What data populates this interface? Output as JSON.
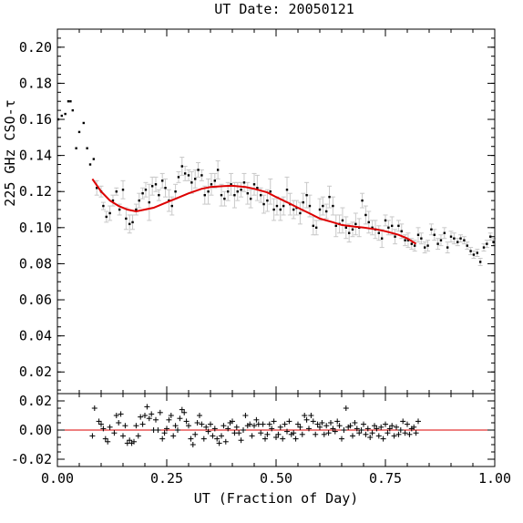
{
  "chart_data": {
    "type": "scatter",
    "title": "UT Date: 20050121",
    "xlabel": "UT (Fraction of Day)",
    "ylabel": "225 GHz CSO-τ",
    "colors": {
      "fit": "#dd0000",
      "data": "#000000",
      "errorbar": "#c8c8c8",
      "axes": "#000000"
    },
    "main_panel": {
      "xlim": [
        0,
        1
      ],
      "ylim": [
        0.008,
        0.21
      ],
      "xticks": [
        "0.00",
        "0.25",
        "0.50",
        "0.75",
        "1.00"
      ],
      "yticks": [
        "0.02",
        "0.04",
        "0.06",
        "0.08",
        "0.10",
        "0.12",
        "0.14",
        "0.16",
        "0.18",
        "0.20"
      ],
      "series": [
        {
          "name": "225 GHz tau measurements",
          "style": "points-with-errorbars",
          "x": [
            0.002,
            0.01,
            0.018,
            0.025,
            0.03,
            0.035,
            0.043,
            0.05,
            0.06,
            0.068,
            0.075,
            0.083,
            0.09,
            0.1,
            0.105,
            0.112,
            0.12,
            0.127,
            0.135,
            0.142,
            0.15,
            0.157,
            0.165,
            0.172,
            0.18,
            0.187,
            0.195,
            0.202,
            0.21,
            0.217,
            0.225,
            0.232,
            0.24,
            0.247,
            0.255,
            0.262,
            0.27,
            0.277,
            0.285,
            0.292,
            0.3,
            0.307,
            0.315,
            0.322,
            0.33,
            0.337,
            0.345,
            0.352,
            0.36,
            0.367,
            0.375,
            0.382,
            0.39,
            0.397,
            0.405,
            0.412,
            0.42,
            0.427,
            0.435,
            0.442,
            0.45,
            0.457,
            0.465,
            0.472,
            0.48,
            0.487,
            0.495,
            0.502,
            0.51,
            0.517,
            0.525,
            0.532,
            0.54,
            0.547,
            0.555,
            0.562,
            0.57,
            0.577,
            0.585,
            0.592,
            0.6,
            0.607,
            0.615,
            0.622,
            0.63,
            0.637,
            0.645,
            0.652,
            0.66,
            0.667,
            0.675,
            0.682,
            0.69,
            0.697,
            0.705,
            0.712,
            0.72,
            0.727,
            0.735,
            0.742,
            0.75,
            0.757,
            0.765,
            0.772,
            0.78,
            0.787,
            0.795,
            0.802,
            0.81,
            0.817,
            0.825,
            0.832,
            0.84,
            0.847,
            0.855,
            0.862,
            0.87,
            0.877,
            0.885,
            0.892,
            0.9,
            0.907,
            0.915,
            0.922,
            0.93,
            0.937,
            0.945,
            0.952,
            0.96,
            0.967,
            0.975,
            0.982,
            0.99,
            0.997
          ],
          "y": [
            0.16,
            0.162,
            0.163,
            0.17,
            0.17,
            0.165,
            0.144,
            0.153,
            0.158,
            0.144,
            0.135,
            0.138,
            0.122,
            0.12,
            0.112,
            0.106,
            0.108,
            0.115,
            0.12,
            0.11,
            0.121,
            0.105,
            0.102,
            0.103,
            0.11,
            0.115,
            0.119,
            0.121,
            0.114,
            0.123,
            0.124,
            0.118,
            0.126,
            0.122,
            0.115,
            0.112,
            0.12,
            0.128,
            0.134,
            0.13,
            0.129,
            0.125,
            0.127,
            0.132,
            0.129,
            0.118,
            0.12,
            0.124,
            0.126,
            0.132,
            0.118,
            0.116,
            0.12,
            0.124,
            0.118,
            0.12,
            0.121,
            0.125,
            0.119,
            0.116,
            0.124,
            0.122,
            0.118,
            0.113,
            0.115,
            0.12,
            0.11,
            0.112,
            0.11,
            0.112,
            0.121,
            0.113,
            0.11,
            0.111,
            0.108,
            0.114,
            0.118,
            0.112,
            0.101,
            0.1,
            0.11,
            0.112,
            0.109,
            0.117,
            0.112,
            0.101,
            0.102,
            0.104,
            0.1,
            0.097,
            0.099,
            0.102,
            0.1,
            0.115,
            0.107,
            0.103,
            0.1,
            0.099,
            0.097,
            0.094,
            0.104,
            0.1,
            0.101,
            0.095,
            0.101,
            0.098,
            0.093,
            0.093,
            0.091,
            0.09,
            0.096,
            0.094,
            0.089,
            0.09,
            0.099,
            0.096,
            0.091,
            0.093,
            0.097,
            0.089,
            0.095,
            0.094,
            0.092,
            0.094,
            0.093,
            0.09,
            0.087,
            0.085,
            0.086,
            0.081,
            0.089,
            0.091,
            0.095,
            0.092
          ],
          "yerr": [
            0.0,
            0.0,
            0.0,
            0.0,
            0.0,
            0.0,
            0.0,
            0.0,
            0.0,
            0.0,
            0.0,
            0.0,
            0.004,
            0.003,
            0.002,
            0.003,
            0.004,
            0.003,
            0.002,
            0.003,
            0.005,
            0.006,
            0.005,
            0.004,
            0.003,
            0.004,
            0.003,
            0.004,
            0.01,
            0.005,
            0.004,
            0.003,
            0.004,
            0.005,
            0.006,
            0.005,
            0.004,
            0.003,
            0.005,
            0.004,
            0.003,
            0.006,
            0.005,
            0.004,
            0.003,
            0.005,
            0.007,
            0.006,
            0.004,
            0.005,
            0.006,
            0.004,
            0.005,
            0.006,
            0.007,
            0.005,
            0.004,
            0.005,
            0.006,
            0.005,
            0.006,
            0.007,
            0.004,
            0.005,
            0.006,
            0.007,
            0.006,
            0.005,
            0.006,
            0.005,
            0.007,
            0.006,
            0.005,
            0.004,
            0.006,
            0.005,
            0.007,
            0.006,
            0.005,
            0.004,
            0.006,
            0.005,
            0.004,
            0.006,
            0.005,
            0.006,
            0.005,
            0.007,
            0.006,
            0.005,
            0.004,
            0.006,
            0.005,
            0.004,
            0.005,
            0.006,
            0.004,
            0.005,
            0.004,
            0.005,
            0.003,
            0.004,
            0.005,
            0.004,
            0.003,
            0.004,
            0.003,
            0.004,
            0.003,
            0.003,
            0.004,
            0.003,
            0.003,
            0.003,
            0.003,
            0.003,
            0.003,
            0.003,
            0.003,
            0.003,
            0.003,
            0.003,
            0.002,
            0.002,
            0.002,
            0.002,
            0.002,
            0.002,
            0.002,
            0.002,
            0.002,
            0.002,
            0.002,
            0.002
          ]
        },
        {
          "name": "polynomial fit",
          "style": "line",
          "x": [
            0.08,
            0.1,
            0.12,
            0.14,
            0.16,
            0.18,
            0.2,
            0.22,
            0.25,
            0.28,
            0.3,
            0.33,
            0.35,
            0.38,
            0.4,
            0.43,
            0.45,
            0.48,
            0.5,
            0.53,
            0.55,
            0.58,
            0.6,
            0.63,
            0.65,
            0.68,
            0.7,
            0.73,
            0.75,
            0.78,
            0.8,
            0.82
          ],
          "y": [
            0.127,
            0.12,
            0.115,
            0.112,
            0.11,
            0.109,
            0.11,
            0.111,
            0.114,
            0.117,
            0.119,
            0.1215,
            0.1225,
            0.123,
            0.1232,
            0.1225,
            0.1215,
            0.1195,
            0.117,
            0.1135,
            0.111,
            0.1075,
            0.105,
            0.103,
            0.1015,
            0.1005,
            0.1,
            0.099,
            0.098,
            0.096,
            0.094,
            0.091
          ]
        }
      ]
    },
    "residual_panel": {
      "xlim": [
        0,
        1
      ],
      "ylim": [
        -0.025,
        0.025
      ],
      "yticks": [
        "0.02",
        "0.00",
        "-0.02"
      ],
      "zero_line": true,
      "series": [
        {
          "name": "fit residuals",
          "style": "plus-markers",
          "x": [
            0.08,
            0.085,
            0.095,
            0.1,
            0.105,
            0.11,
            0.115,
            0.12,
            0.13,
            0.135,
            0.14,
            0.145,
            0.15,
            0.155,
            0.16,
            0.165,
            0.17,
            0.175,
            0.18,
            0.185,
            0.19,
            0.195,
            0.2,
            0.205,
            0.21,
            0.215,
            0.22,
            0.225,
            0.23,
            0.235,
            0.24,
            0.245,
            0.25,
            0.255,
            0.26,
            0.265,
            0.27,
            0.275,
            0.28,
            0.285,
            0.29,
            0.295,
            0.3,
            0.305,
            0.31,
            0.315,
            0.32,
            0.325,
            0.33,
            0.335,
            0.34,
            0.345,
            0.35,
            0.355,
            0.36,
            0.365,
            0.37,
            0.375,
            0.38,
            0.385,
            0.39,
            0.395,
            0.4,
            0.405,
            0.41,
            0.415,
            0.42,
            0.425,
            0.43,
            0.435,
            0.44,
            0.445,
            0.45,
            0.455,
            0.46,
            0.465,
            0.47,
            0.475,
            0.48,
            0.485,
            0.49,
            0.495,
            0.5,
            0.505,
            0.51,
            0.515,
            0.52,
            0.525,
            0.53,
            0.535,
            0.54,
            0.545,
            0.55,
            0.555,
            0.56,
            0.565,
            0.57,
            0.575,
            0.58,
            0.585,
            0.59,
            0.595,
            0.6,
            0.605,
            0.61,
            0.615,
            0.62,
            0.625,
            0.63,
            0.635,
            0.64,
            0.645,
            0.65,
            0.655,
            0.66,
            0.665,
            0.67,
            0.675,
            0.68,
            0.685,
            0.69,
            0.695,
            0.7,
            0.705,
            0.71,
            0.715,
            0.72,
            0.725,
            0.73,
            0.735,
            0.74,
            0.745,
            0.75,
            0.755,
            0.76,
            0.765,
            0.77,
            0.775,
            0.78,
            0.785,
            0.79,
            0.795,
            0.8,
            0.805,
            0.81,
            0.815,
            0.82,
            0.825
          ],
          "y": [
            -0.004,
            0.015,
            0.006,
            0.004,
            0.001,
            -0.006,
            -0.008,
            0.002,
            -0.002,
            0.01,
            0.005,
            0.011,
            -0.004,
            0.003,
            -0.009,
            -0.007,
            -0.009,
            -0.008,
            0.003,
            -0.004,
            0.009,
            0.004,
            0.01,
            0.016,
            0.008,
            0.011,
            0.0,
            0.007,
            0.0,
            0.012,
            -0.006,
            -0.002,
            0.001,
            0.007,
            0.01,
            -0.004,
            0.003,
            0.0,
            0.008,
            0.014,
            0.012,
            0.006,
            0.003,
            -0.006,
            -0.01,
            -0.003,
            0.005,
            0.01,
            0.004,
            -0.006,
            0.002,
            -0.001,
            0.004,
            -0.004,
            0.001,
            -0.006,
            -0.009,
            -0.004,
            0.003,
            -0.008,
            0.001,
            0.005,
            0.006,
            -0.002,
            0.002,
            -0.002,
            -0.007,
            0.0,
            0.01,
            0.003,
            0.004,
            -0.004,
            0.003,
            0.007,
            0.004,
            -0.002,
            0.004,
            -0.006,
            -0.003,
            0.004,
            0.001,
            0.006,
            -0.005,
            -0.003,
            0.002,
            -0.006,
            0.004,
            -0.001,
            0.006,
            -0.003,
            -0.002,
            -0.006,
            0.004,
            0.002,
            -0.003,
            0.01,
            0.007,
            0.001,
            0.01,
            0.006,
            -0.003,
            0.004,
            0.002,
            0.005,
            -0.003,
            0.003,
            -0.002,
            0.005,
            0.001,
            -0.001,
            0.006,
            0.003,
            -0.006,
            0.0,
            0.015,
            0.002,
            0.003,
            -0.004,
            0.005,
            0.001,
            -0.002,
            0.0,
            0.004,
            -0.003,
            0.001,
            -0.005,
            -0.002,
            0.003,
            0.001,
            -0.004,
            0.002,
            -0.006,
            0.004,
            -0.002,
            0.001,
            0.003,
            -0.004,
            0.002,
            -0.003,
            0.0,
            0.006,
            -0.002,
            0.004,
            -0.003,
            0.001,
            0.002,
            -0.002,
            0.006
          ]
        }
      ]
    }
  }
}
